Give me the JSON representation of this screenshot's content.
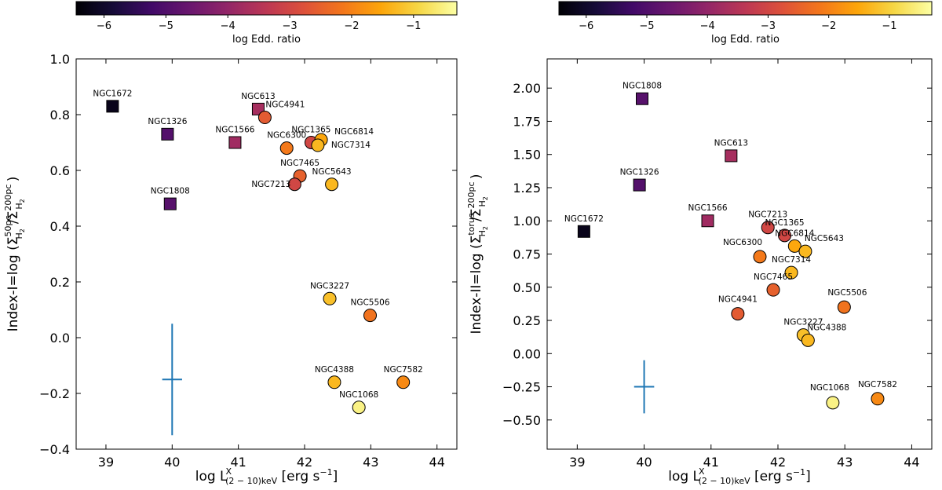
{
  "colorbar": {
    "label": "log Edd. ratio",
    "range": [
      -6.45,
      -0.3
    ],
    "ticks": [
      {
        "value": -6,
        "label": "−6"
      },
      {
        "value": -5,
        "label": "−5"
      },
      {
        "value": -4,
        "label": "−4"
      },
      {
        "value": -3,
        "label": "−3"
      },
      {
        "value": -2,
        "label": "−2"
      },
      {
        "value": -1,
        "label": "−1"
      }
    ],
    "colormap": "inferno"
  },
  "chart_data": [
    {
      "type": "scatter",
      "title": "",
      "xlabel": "log L(2−10)keV [erg s−1]",
      "ylabel": "Index-I=log (ΣH2 50pc/ΣH2 200pc)",
      "xlim": [
        38.55,
        44.3
      ],
      "ylim": [
        -0.4,
        1.0
      ],
      "xticks": [
        {
          "value": 39,
          "label": "39"
        },
        {
          "value": 40,
          "label": "40"
        },
        {
          "value": 41,
          "label": "41"
        },
        {
          "value": 42,
          "label": "42"
        },
        {
          "value": 43,
          "label": "43"
        },
        {
          "value": 44,
          "label": "44"
        }
      ],
      "yticks": [
        {
          "value": -0.4,
          "label": "−0.4"
        },
        {
          "value": -0.2,
          "label": "−0.2"
        },
        {
          "value": 0.0,
          "label": "0.0"
        },
        {
          "value": 0.2,
          "label": "0.2"
        },
        {
          "value": 0.4,
          "label": "0.4"
        },
        {
          "value": 0.6,
          "label": "0.6"
        },
        {
          "value": 0.8,
          "label": "0.8"
        },
        {
          "value": 1.0,
          "label": "1.0"
        }
      ],
      "error_bar": {
        "x": 40.0,
        "y": -0.15,
        "xerr": 0.15,
        "yerr": 0.2,
        "color": "#1f77b4"
      },
      "points": [
        {
          "name": "NGC1672",
          "x": 39.1,
          "y": 0.83,
          "edd": -6.2,
          "marker": "square",
          "label_offset": [
            0,
            -10
          ]
        },
        {
          "name": "NGC1326",
          "x": 39.93,
          "y": 0.73,
          "edd": -4.95,
          "marker": "square",
          "label_offset": [
            0,
            -10
          ]
        },
        {
          "name": "NGC1808",
          "x": 39.97,
          "y": 0.48,
          "edd": -4.9,
          "marker": "square",
          "label_offset": [
            0,
            -10
          ]
        },
        {
          "name": "NGC1566",
          "x": 40.95,
          "y": 0.7,
          "edd": -3.8,
          "marker": "square",
          "label_offset": [
            0,
            -10
          ]
        },
        {
          "name": "NGC613",
          "x": 41.3,
          "y": 0.82,
          "edd": -3.7,
          "marker": "square",
          "label_offset": [
            0,
            -10
          ]
        },
        {
          "name": "NGC4941",
          "x": 41.4,
          "y": 0.79,
          "edd": -2.6,
          "marker": "circle",
          "label_offset": [
            26,
            -10
          ]
        },
        {
          "name": "NGC6300",
          "x": 41.73,
          "y": 0.68,
          "edd": -2.1,
          "marker": "circle",
          "label_offset": [
            0,
            -10
          ]
        },
        {
          "name": "NGC1365",
          "x": 42.1,
          "y": 0.7,
          "edd": -3.0,
          "marker": "circle",
          "label_offset": [
            0,
            -10
          ]
        },
        {
          "name": "NGC6814",
          "x": 42.25,
          "y": 0.71,
          "edd": -1.5,
          "marker": "circle",
          "label_offset": [
            42,
            -4
          ]
        },
        {
          "name": "NGC7314",
          "x": 42.2,
          "y": 0.69,
          "edd": -1.3,
          "marker": "circle",
          "label_offset": [
            42,
            6
          ]
        },
        {
          "name": "NGC7465",
          "x": 41.93,
          "y": 0.58,
          "edd": -2.5,
          "marker": "circle",
          "label_offset": [
            0,
            -10
          ]
        },
        {
          "name": "NGC5643",
          "x": 42.41,
          "y": 0.55,
          "edd": -1.3,
          "marker": "circle",
          "label_offset": [
            0,
            -10
          ]
        },
        {
          "name": "NGC7213",
          "x": 41.85,
          "y": 0.55,
          "edd": -3.0,
          "marker": "circle",
          "label_offset": [
            -30,
            6
          ]
        },
        {
          "name": "NGC3227",
          "x": 42.38,
          "y": 0.14,
          "edd": -1.2,
          "marker": "circle",
          "label_offset": [
            0,
            -10
          ]
        },
        {
          "name": "NGC5506",
          "x": 42.99,
          "y": 0.08,
          "edd": -2.2,
          "marker": "circle",
          "label_offset": [
            0,
            -10
          ]
        },
        {
          "name": "NGC4388",
          "x": 42.45,
          "y": -0.16,
          "edd": -1.3,
          "marker": "circle",
          "label_offset": [
            0,
            -10
          ]
        },
        {
          "name": "NGC7582",
          "x": 43.49,
          "y": -0.16,
          "edd": -1.9,
          "marker": "circle",
          "label_offset": [
            0,
            -10
          ]
        },
        {
          "name": "NGC1068",
          "x": 42.82,
          "y": -0.25,
          "edd": -0.5,
          "marker": "circle",
          "label_offset": [
            0,
            -10
          ]
        }
      ]
    },
    {
      "type": "scatter",
      "title": "",
      "xlabel": "log L(2−10)keV [erg s−1]",
      "ylabel": "Index-II=log (ΣH2 torus/ΣH2 200pc)",
      "xlim": [
        38.55,
        44.3
      ],
      "ylim": [
        -0.72,
        2.22
      ],
      "xticks": [
        {
          "value": 39,
          "label": "39"
        },
        {
          "value": 40,
          "label": "40"
        },
        {
          "value": 41,
          "label": "41"
        },
        {
          "value": 42,
          "label": "42"
        },
        {
          "value": 43,
          "label": "43"
        },
        {
          "value": 44,
          "label": "44"
        }
      ],
      "yticks": [
        {
          "value": -0.5,
          "label": "−0.50"
        },
        {
          "value": -0.25,
          "label": "−0.25"
        },
        {
          "value": 0.0,
          "label": "0.00"
        },
        {
          "value": 0.25,
          "label": "0.25"
        },
        {
          "value": 0.5,
          "label": "0.50"
        },
        {
          "value": 0.75,
          "label": "0.75"
        },
        {
          "value": 1.0,
          "label": "1.00"
        },
        {
          "value": 1.25,
          "label": "1.25"
        },
        {
          "value": 1.5,
          "label": "1.50"
        },
        {
          "value": 1.75,
          "label": "1.75"
        },
        {
          "value": 2.0,
          "label": "2.00"
        }
      ],
      "error_bar": {
        "x": 40.0,
        "y": -0.25,
        "xerr": 0.15,
        "yerr": 0.2,
        "color": "#1f77b4"
      },
      "points": [
        {
          "name": "NGC1808",
          "x": 39.97,
          "y": 1.92,
          "edd": -4.9,
          "marker": "square",
          "label_offset": [
            0,
            -10
          ]
        },
        {
          "name": "NGC613",
          "x": 41.3,
          "y": 1.49,
          "edd": -3.7,
          "marker": "square",
          "label_offset": [
            0,
            -10
          ]
        },
        {
          "name": "NGC1326",
          "x": 39.93,
          "y": 1.27,
          "edd": -4.95,
          "marker": "square",
          "label_offset": [
            0,
            -10
          ]
        },
        {
          "name": "NGC1672",
          "x": 39.1,
          "y": 0.92,
          "edd": -6.2,
          "marker": "square",
          "label_offset": [
            0,
            -10
          ]
        },
        {
          "name": "NGC1566",
          "x": 40.95,
          "y": 1.0,
          "edd": -3.8,
          "marker": "square",
          "label_offset": [
            0,
            -10
          ]
        },
        {
          "name": "NGC7213",
          "x": 41.85,
          "y": 0.95,
          "edd": -3.0,
          "marker": "circle",
          "label_offset": [
            0,
            -10
          ]
        },
        {
          "name": "NGC1365",
          "x": 42.1,
          "y": 0.89,
          "edd": -3.0,
          "marker": "circle",
          "label_offset": [
            0,
            -10
          ]
        },
        {
          "name": "NGC6814",
          "x": 42.25,
          "y": 0.81,
          "edd": -1.5,
          "marker": "circle",
          "label_offset": [
            0,
            -10
          ]
        },
        {
          "name": "NGC5643",
          "x": 42.41,
          "y": 0.77,
          "edd": -1.3,
          "marker": "circle",
          "label_offset": [
            24,
            -10
          ]
        },
        {
          "name": "NGC6300",
          "x": 41.73,
          "y": 0.73,
          "edd": -2.1,
          "marker": "circle",
          "label_offset": [
            -22,
            -12
          ]
        },
        {
          "name": "NGC7314",
          "x": 42.2,
          "y": 0.61,
          "edd": -1.3,
          "marker": "circle",
          "label_offset": [
            0,
            -10
          ]
        },
        {
          "name": "NGC7465",
          "x": 41.93,
          "y": 0.48,
          "edd": -2.5,
          "marker": "circle",
          "label_offset": [
            0,
            -10
          ]
        },
        {
          "name": "NGC4941",
          "x": 41.4,
          "y": 0.3,
          "edd": -2.6,
          "marker": "circle",
          "label_offset": [
            0,
            -12
          ]
        },
        {
          "name": "NGC5506",
          "x": 42.99,
          "y": 0.35,
          "edd": -2.2,
          "marker": "circle",
          "label_offset": [
            4,
            -12
          ]
        },
        {
          "name": "NGC3227",
          "x": 42.38,
          "y": 0.14,
          "edd": -1.2,
          "marker": "circle",
          "label_offset": [
            0,
            -10
          ]
        },
        {
          "name": "NGC4388",
          "x": 42.45,
          "y": 0.1,
          "edd": -1.3,
          "marker": "circle",
          "label_offset": [
            24,
            -10
          ]
        },
        {
          "name": "NGC1068",
          "x": 42.82,
          "y": -0.37,
          "edd": -0.5,
          "marker": "circle",
          "label_offset": [
            -4,
            -13
          ]
        },
        {
          "name": "NGC7582",
          "x": 43.49,
          "y": -0.34,
          "edd": -1.9,
          "marker": "circle",
          "label_offset": [
            0,
            -12
          ]
        }
      ]
    }
  ]
}
